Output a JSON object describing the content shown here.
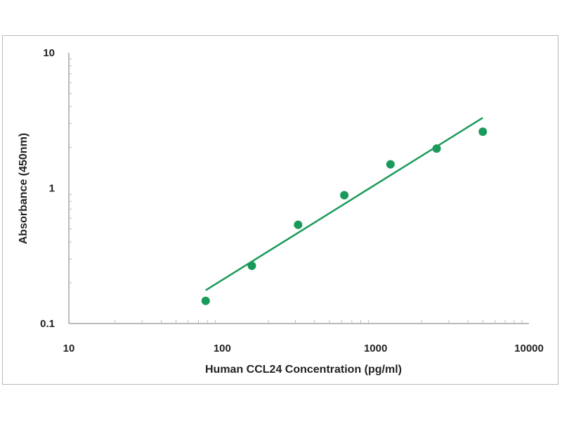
{
  "chart_data": {
    "type": "scatter",
    "title": "",
    "xlabel": "Human CCL24 Concentration (pg/ml)",
    "ylabel": "Absorbance (450nm)",
    "x_scale": "log",
    "y_scale": "log",
    "xlim": [
      10,
      10000
    ],
    "ylim": [
      0.1,
      10
    ],
    "x_ticks": [
      "10",
      "100",
      "1000",
      "10000"
    ],
    "y_ticks": [
      "0.1",
      "1",
      "10"
    ],
    "grid": false,
    "legend": "none",
    "color": "#1a9a5a",
    "points": {
      "x": [
        78,
        156,
        312.5,
        625,
        1250,
        2500,
        5000
      ],
      "y": [
        0.147,
        0.267,
        0.536,
        0.887,
        1.5,
        1.96,
        2.61
      ]
    },
    "fit_line": {
      "x": [
        78,
        5000
      ],
      "y": [
        0.176,
        3.31
      ]
    }
  }
}
